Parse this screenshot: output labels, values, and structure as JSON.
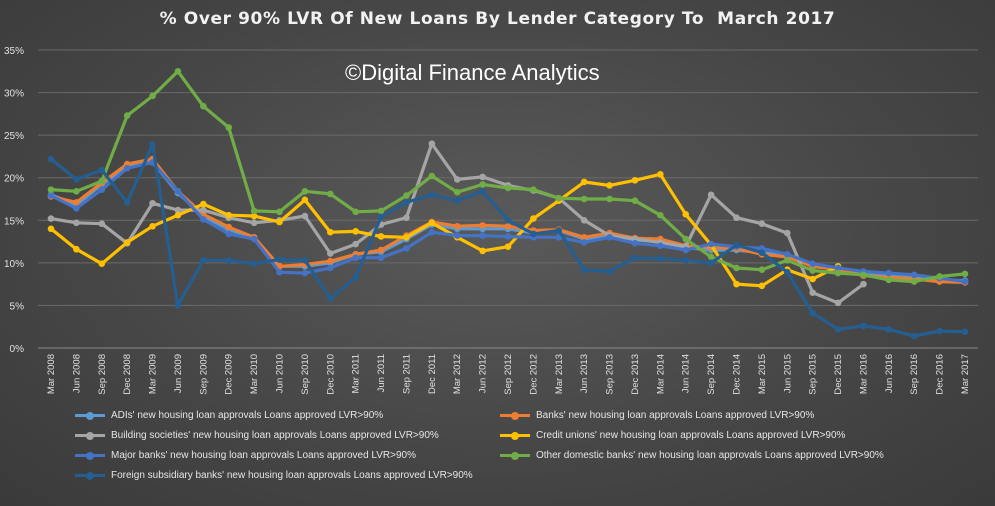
{
  "chart_data": {
    "type": "line",
    "title": "% Over 90% LVR Of New Loans By Lender Category To  March 2017",
    "watermark": "©Digital Finance Analytics",
    "xlabel": "",
    "ylabel": "",
    "ylim": [
      0,
      35
    ],
    "y_ticks": [
      "0%",
      "5%",
      "10%",
      "15%",
      "20%",
      "25%",
      "30%",
      "35%"
    ],
    "grid": true,
    "legend_position": "bottom",
    "categories": [
      "Mar 2008",
      "Jun 2008",
      "Sep 2008",
      "Dec 2008",
      "Mar 2009",
      "Jun 2009",
      "Sep 2009",
      "Dec 2009",
      "Mar 2010",
      "Jun 2010",
      "Sep 2010",
      "Dec 2010",
      "Mar 2011",
      "Jun 2011",
      "Sep 2011",
      "Dec 2011",
      "Mar 2012",
      "Jun 2012",
      "Sep 2012",
      "Dec 2012",
      "Mar 2013",
      "Jun 2013",
      "Sep 2013",
      "Dec 2013",
      "Mar 2014",
      "Jun 2014",
      "Sep 2014",
      "Dec 2014",
      "Mar 2015",
      "Jun 2015",
      "Sep 2015",
      "Dec 2015",
      "Mar 2016",
      "Jun 2016",
      "Sep 2016",
      "Dec 2016",
      "Mar 2017"
    ],
    "series": [
      {
        "name": "ADIs' new housing loan approvals Loans approved LVR>90%",
        "color": "#5b9bd5",
        "values": [
          18.0,
          16.8,
          19.2,
          21.3,
          21.8,
          18.2,
          15.5,
          13.9,
          13.0,
          9.6,
          9.6,
          10.0,
          11.0,
          11.3,
          12.8,
          14.5,
          14.0,
          14.0,
          14.0,
          13.5,
          13.8,
          12.8,
          13.3,
          12.7,
          12.5,
          11.8,
          11.5,
          11.5,
          11.2,
          10.8,
          9.8,
          9.2,
          8.8,
          8.6,
          8.3,
          8.0,
          7.9
        ]
      },
      {
        "name": "Banks' new housing loan approvals Loans approved LVR>90%",
        "color": "#ed7d31",
        "values": [
          17.8,
          17.1,
          19.4,
          21.6,
          22.2,
          18.4,
          15.7,
          14.2,
          13.0,
          9.6,
          9.8,
          10.2,
          11.0,
          11.5,
          13.2,
          14.8,
          14.3,
          14.4,
          14.3,
          13.8,
          13.9,
          13.0,
          13.5,
          12.9,
          12.8,
          12.0,
          11.8,
          11.7,
          11.0,
          10.7,
          9.6,
          9.2,
          8.5,
          8.3,
          8.1,
          7.8,
          7.7
        ]
      },
      {
        "name": "Building societies' new housing loan approvals Loans approved LVR>90%",
        "color": "#a5a5a5",
        "values": [
          15.2,
          14.7,
          14.6,
          12.3,
          17.0,
          16.2,
          16.2,
          15.3,
          14.7,
          15.0,
          15.5,
          11.1,
          12.2,
          14.5,
          15.3,
          24.0,
          19.8,
          20.1,
          19.1,
          18.5,
          17.6,
          15.0,
          13.2,
          12.8,
          12.4,
          11.9,
          18.0,
          15.3,
          14.6,
          13.5,
          6.5,
          5.3,
          7.5,
          null,
          null,
          null,
          null
        ]
      },
      {
        "name": "Credit unions' new housing loan approvals Loans approved LVR>90%",
        "color": "#ffc000",
        "values": [
          14.0,
          11.6,
          9.9,
          12.4,
          14.3,
          15.6,
          16.9,
          15.6,
          15.5,
          14.8,
          17.4,
          13.6,
          13.7,
          13.1,
          13.0,
          14.7,
          13.0,
          11.4,
          11.9,
          15.2,
          17.3,
          19.5,
          19.1,
          19.7,
          20.4,
          15.7,
          12.1,
          7.5,
          7.3,
          9.2,
          8.1,
          9.6,
          null,
          null,
          null,
          null,
          null
        ]
      },
      {
        "name": "Major banks' new housing loan approvals Loans approved LVR>90%",
        "color": "#4472c4",
        "values": [
          17.9,
          16.4,
          18.6,
          21.1,
          21.8,
          18.4,
          15.1,
          13.4,
          12.8,
          8.9,
          8.8,
          9.4,
          10.6,
          10.6,
          11.7,
          13.6,
          13.2,
          13.2,
          13.1,
          13.0,
          13.0,
          12.4,
          13.0,
          12.3,
          12.0,
          11.5,
          12.2,
          11.9,
          11.7,
          11.0,
          9.9,
          9.4,
          9.0,
          8.8,
          8.6,
          8.2,
          7.8
        ]
      },
      {
        "name": "Other domestic banks' new housing loan approvals Loans approved LVR>90%",
        "color": "#70ad47",
        "values": [
          18.6,
          18.4,
          19.6,
          27.3,
          29.6,
          32.5,
          28.4,
          25.9,
          16.1,
          16.0,
          18.4,
          18.1,
          16.0,
          16.1,
          17.9,
          20.2,
          18.3,
          19.2,
          18.8,
          18.6,
          17.6,
          17.5,
          17.5,
          17.3,
          15.6,
          12.8,
          10.7,
          9.4,
          9.2,
          10.3,
          9.1,
          8.8,
          8.6,
          8.0,
          7.8,
          8.4,
          8.7
        ]
      },
      {
        "name": "Foreign subsidiary banks' new housing loan approvals Loans approved LVR>90%",
        "color": "#255e91",
        "values": [
          22.2,
          19.8,
          20.9,
          17.1,
          23.9,
          5.0,
          10.3,
          10.3,
          9.9,
          10.4,
          10.3,
          5.8,
          8.3,
          15.4,
          17.1,
          18.0,
          17.3,
          18.4,
          15.0,
          13.4,
          13.8,
          9.2,
          9.0,
          10.6,
          10.5,
          10.3,
          10.0,
          12.1,
          11.2,
          8.9,
          4.1,
          2.2,
          2.6,
          2.2,
          1.4,
          2.0,
          1.9
        ]
      }
    ]
  }
}
